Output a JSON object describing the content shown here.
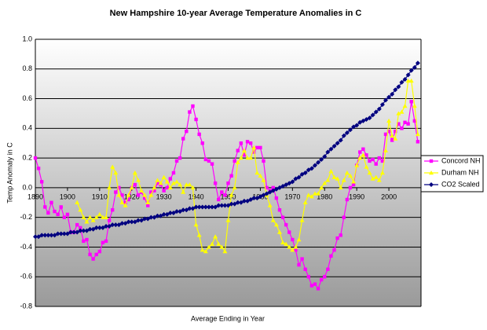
{
  "chart_data": {
    "type": "line",
    "title": "New Hampshire 10-year Average Temperature Anomalies in C",
    "x_label": "Average Ending in Year",
    "y_label": "Temp Anomaly in C",
    "x": [
      1890,
      1891,
      1892,
      1893,
      1894,
      1895,
      1896,
      1897,
      1898,
      1899,
      1900,
      1901,
      1902,
      1903,
      1904,
      1905,
      1906,
      1907,
      1908,
      1909,
      1910,
      1911,
      1912,
      1913,
      1914,
      1915,
      1916,
      1917,
      1918,
      1919,
      1920,
      1921,
      1922,
      1923,
      1924,
      1925,
      1926,
      1927,
      1928,
      1929,
      1930,
      1931,
      1932,
      1933,
      1934,
      1935,
      1936,
      1937,
      1938,
      1939,
      1940,
      1941,
      1942,
      1943,
      1944,
      1945,
      1946,
      1947,
      1948,
      1949,
      1950,
      1951,
      1952,
      1953,
      1954,
      1955,
      1956,
      1957,
      1958,
      1959,
      1960,
      1961,
      1962,
      1963,
      1964,
      1965,
      1966,
      1967,
      1968,
      1969,
      1970,
      1971,
      1972,
      1973,
      1974,
      1975,
      1976,
      1977,
      1978,
      1979,
      1980,
      1981,
      1982,
      1983,
      1984,
      1985,
      1986,
      1987,
      1988,
      1989,
      1990,
      1991,
      1992,
      1993,
      1994,
      1995,
      1996,
      1997,
      1998,
      1999,
      2000,
      2001,
      2002,
      2003,
      2004,
      2005,
      2006,
      2007,
      2008,
      2009
    ],
    "series": [
      {
        "name": "Concord NH",
        "color": "#ff00ff",
        "marker": "square",
        "values": [
          0.2,
          0.13,
          0.04,
          -0.13,
          -0.17,
          -0.1,
          -0.16,
          -0.18,
          -0.13,
          -0.2,
          -0.18,
          -0.3,
          -0.3,
          -0.25,
          -0.27,
          -0.36,
          -0.35,
          -0.45,
          -0.48,
          -0.45,
          -0.43,
          -0.37,
          -0.36,
          -0.22,
          -0.15,
          -0.03,
          0.0,
          -0.05,
          -0.1,
          -0.08,
          0.0,
          0.02,
          -0.05,
          -0.03,
          -0.07,
          -0.12,
          -0.03,
          -0.02,
          0.03,
          0.02,
          -0.02,
          0.0,
          0.06,
          0.1,
          0.18,
          0.2,
          0.33,
          0.38,
          0.51,
          0.55,
          0.46,
          0.36,
          0.3,
          0.19,
          0.18,
          0.16,
          0.03,
          -0.08,
          -0.03,
          -0.05,
          0.03,
          0.08,
          0.18,
          0.25,
          0.3,
          0.22,
          0.31,
          0.3,
          0.24,
          0.27,
          0.27,
          0.18,
          0.0,
          -0.02,
          0.0,
          -0.07,
          -0.15,
          -0.2,
          -0.25,
          -0.3,
          -0.35,
          -0.42,
          -0.52,
          -0.48,
          -0.55,
          -0.6,
          -0.66,
          -0.65,
          -0.68,
          -0.62,
          -0.6,
          -0.55,
          -0.46,
          -0.42,
          -0.34,
          -0.32,
          -0.2,
          -0.08,
          0.0,
          0.02,
          0.15,
          0.24,
          0.26,
          0.22,
          0.18,
          0.19,
          0.16,
          0.2,
          0.18,
          0.36,
          0.38,
          0.32,
          0.38,
          0.43,
          0.4,
          0.44,
          0.43,
          0.58,
          0.45,
          0.31
        ]
      },
      {
        "name": "Durham NH",
        "color": "#ffff00",
        "marker": "triangle",
        "values": [
          null,
          null,
          null,
          null,
          null,
          null,
          null,
          null,
          null,
          null,
          null,
          null,
          null,
          -0.1,
          -0.15,
          -0.2,
          -0.23,
          -0.2,
          -0.22,
          -0.2,
          -0.18,
          -0.2,
          -0.2,
          0.0,
          0.14,
          0.1,
          -0.05,
          -0.1,
          -0.12,
          -0.05,
          0.0,
          0.1,
          0.05,
          -0.02,
          -0.05,
          -0.1,
          -0.05,
          0.0,
          0.05,
          0.03,
          0.07,
          0.04,
          0.0,
          0.03,
          0.04,
          0.02,
          -0.03,
          0.02,
          0.02,
          0.0,
          -0.25,
          -0.32,
          -0.42,
          -0.43,
          -0.4,
          -0.38,
          -0.33,
          -0.38,
          -0.4,
          -0.43,
          -0.22,
          -0.05,
          0.0,
          0.17,
          0.2,
          0.25,
          0.2,
          0.2,
          0.27,
          0.1,
          0.08,
          0.05,
          -0.05,
          -0.12,
          -0.22,
          -0.25,
          -0.3,
          -0.37,
          -0.38,
          -0.4,
          -0.42,
          -0.4,
          -0.35,
          -0.22,
          -0.1,
          -0.05,
          -0.06,
          -0.04,
          -0.04,
          0.0,
          0.03,
          0.05,
          0.11,
          0.07,
          0.06,
          0.0,
          0.05,
          0.1,
          0.08,
          0.04,
          0.15,
          0.2,
          0.22,
          0.14,
          0.1,
          0.06,
          0.07,
          0.05,
          0.1,
          0.25,
          0.45,
          0.35,
          0.33,
          0.5,
          0.51,
          0.55,
          0.72,
          0.72,
          0.55,
          0.36
        ]
      },
      {
        "name": "CO2 Scaled",
        "color": "#000080",
        "marker": "diamond",
        "values": [
          -0.33,
          -0.33,
          -0.32,
          -0.32,
          -0.32,
          -0.32,
          -0.32,
          -0.31,
          -0.31,
          -0.31,
          -0.31,
          -0.3,
          -0.3,
          -0.3,
          -0.29,
          -0.29,
          -0.29,
          -0.28,
          -0.28,
          -0.27,
          -0.27,
          -0.27,
          -0.26,
          -0.26,
          -0.25,
          -0.25,
          -0.25,
          -0.24,
          -0.24,
          -0.23,
          -0.23,
          -0.23,
          -0.22,
          -0.22,
          -0.21,
          -0.21,
          -0.2,
          -0.2,
          -0.19,
          -0.19,
          -0.18,
          -0.18,
          -0.17,
          -0.17,
          -0.16,
          -0.16,
          -0.15,
          -0.15,
          -0.14,
          -0.14,
          -0.13,
          -0.13,
          -0.13,
          -0.13,
          -0.13,
          -0.13,
          -0.13,
          -0.12,
          -0.12,
          -0.12,
          -0.12,
          -0.11,
          -0.11,
          -0.1,
          -0.1,
          -0.09,
          -0.09,
          -0.08,
          -0.07,
          -0.07,
          -0.06,
          -0.05,
          -0.04,
          -0.03,
          -0.02,
          -0.01,
          0.0,
          0.01,
          0.02,
          0.03,
          0.04,
          0.06,
          0.07,
          0.09,
          0.1,
          0.12,
          0.13,
          0.15,
          0.17,
          0.19,
          0.21,
          0.24,
          0.26,
          0.28,
          0.3,
          0.32,
          0.35,
          0.37,
          0.39,
          0.41,
          0.42,
          0.44,
          0.45,
          0.46,
          0.47,
          0.49,
          0.51,
          0.53,
          0.56,
          0.59,
          0.61,
          0.63,
          0.66,
          0.68,
          0.71,
          0.73,
          0.76,
          0.79,
          0.81,
          0.84
        ]
      }
    ],
    "xlim": [
      1890,
      2010
    ],
    "xticks": [
      1890,
      1900,
      1910,
      1920,
      1930,
      1940,
      1950,
      1960,
      1970,
      1980,
      1990,
      2000
    ],
    "ylim": [
      -0.8,
      1.0
    ],
    "yticks": [
      {
        "value": 1.0,
        "label": "1.0"
      },
      0.8,
      0.6,
      0.4,
      0.2,
      {
        "value": 0,
        "label": "0.0"
      },
      -0.2,
      -0.4,
      -0.6,
      -0.8
    ],
    "grid": true,
    "legend": "right"
  }
}
